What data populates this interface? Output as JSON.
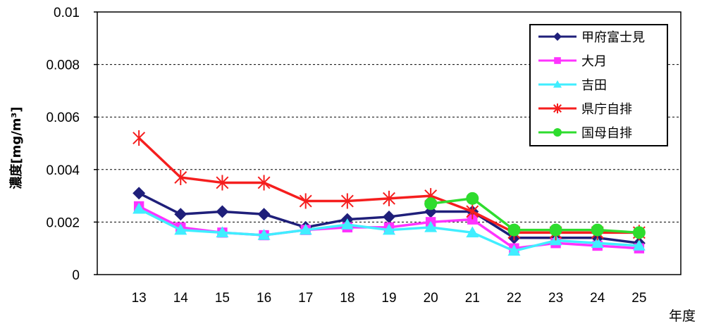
{
  "chart_data": {
    "type": "line",
    "xlabel": "年度",
    "ylabel": "濃度[mg/m³]",
    "x": [
      13,
      14,
      15,
      16,
      17,
      18,
      19,
      20,
      21,
      22,
      23,
      24,
      25
    ],
    "x_tick_labels": [
      "13",
      "14",
      "15",
      "16",
      "17",
      "18",
      "19",
      "20",
      "21",
      "22",
      "23",
      "24",
      "25"
    ],
    "xlim": [
      12,
      26
    ],
    "ylim": [
      0,
      0.01
    ],
    "yticks": [
      0,
      0.002,
      0.004,
      0.006,
      0.008,
      0.01
    ],
    "ytick_labels": [
      "0",
      "0.002",
      "0.004",
      "0.006",
      "0.008",
      "0.01"
    ],
    "grid": true,
    "legend_position": "top-right",
    "series": [
      {
        "name": "甲府富士見",
        "color": "#1f1f7a",
        "marker": "diamond",
        "values": [
          0.0031,
          0.0023,
          0.0024,
          0.0023,
          0.0018,
          0.0021,
          0.0022,
          0.0024,
          0.0024,
          0.0014,
          0.0014,
          0.0014,
          0.0012
        ]
      },
      {
        "name": "大月",
        "color": "#ff33ff",
        "marker": "square",
        "values": [
          0.0026,
          0.0018,
          0.0016,
          0.0015,
          0.0017,
          0.0018,
          0.0018,
          0.002,
          0.0021,
          0.001,
          0.0012,
          0.0011,
          0.001
        ]
      },
      {
        "name": "吉田",
        "color": "#40eeff",
        "marker": "triangle",
        "values": [
          0.0025,
          0.0017,
          0.0016,
          0.0015,
          0.0017,
          0.0019,
          0.0017,
          0.0018,
          0.0016,
          0.0009,
          0.0013,
          0.0012,
          0.0011
        ]
      },
      {
        "name": "県庁自排",
        "color": "#f51e1e",
        "marker": "star",
        "values": [
          0.0052,
          0.0037,
          0.0035,
          0.0035,
          0.0028,
          0.0028,
          0.0029,
          0.003,
          0.0024,
          0.0016,
          0.0016,
          0.0016,
          0.0016
        ]
      },
      {
        "name": "国母自排",
        "color": "#2edc2e",
        "marker": "circle",
        "values": [
          null,
          null,
          null,
          null,
          null,
          null,
          null,
          0.0027,
          0.0029,
          0.0017,
          0.0017,
          0.0017,
          0.0016
        ]
      }
    ]
  }
}
